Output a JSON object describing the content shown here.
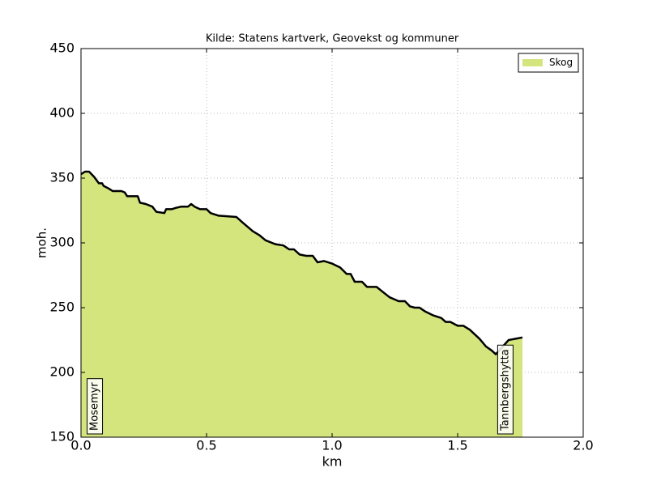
{
  "chart_data": {
    "type": "area",
    "title": "Kilde: Statens kartverk, Geovekst og kommuner",
    "x_label": "km",
    "y_label": "moh.",
    "xlim": [
      0,
      2
    ],
    "ylim": [
      150,
      450
    ],
    "xticks": [
      {
        "value": 0,
        "label": "0.0"
      },
      {
        "value": 0.5,
        "label": "0.5"
      },
      {
        "value": 1,
        "label": "1.0"
      },
      {
        "value": 1.5,
        "label": "1.5"
      },
      {
        "value": 2,
        "label": "2.0"
      }
    ],
    "yticks": [
      150,
      200,
      250,
      300,
      350,
      400,
      450
    ],
    "grid": true,
    "legend": "upper right",
    "line_color": "#000000",
    "x": [
      0,
      0.016,
      0.032,
      0.052,
      0.071,
      0.084,
      0.09,
      0.11,
      0.126,
      0.161,
      0.174,
      0.184,
      0.226,
      0.235,
      0.258,
      0.284,
      0.3,
      0.332,
      0.339,
      0.361,
      0.377,
      0.4,
      0.426,
      0.439,
      0.452,
      0.474,
      0.5,
      0.516,
      0.548,
      0.619,
      0.642,
      0.684,
      0.71,
      0.735,
      0.774,
      0.806,
      0.829,
      0.848,
      0.871,
      0.897,
      0.923,
      0.942,
      0.968,
      1.0,
      1.032,
      1.058,
      1.074,
      1.09,
      1.119,
      1.139,
      1.177,
      1.203,
      1.229,
      1.265,
      1.29,
      1.31,
      1.329,
      1.348,
      1.371,
      1.403,
      1.435,
      1.452,
      1.471,
      1.5,
      1.523,
      1.548,
      1.587,
      1.613,
      1.635,
      1.652,
      1.703,
      1.758
    ],
    "series": [
      {
        "name": "Skog",
        "color": "#d4e57e",
        "values": [
          353,
          355,
          355,
          351,
          346,
          346,
          344,
          342,
          340,
          340,
          339,
          336,
          336,
          331,
          330,
          328,
          324,
          323,
          326,
          326,
          327,
          328,
          328,
          330,
          328,
          326,
          326,
          323,
          321,
          320,
          316,
          309,
          306,
          302,
          299,
          298,
          295,
          295,
          291,
          290,
          290,
          285,
          286,
          284,
          281,
          276,
          276,
          270,
          270,
          266,
          266,
          262,
          258,
          255,
          255,
          251,
          250,
          250,
          247,
          244,
          242,
          239,
          239,
          236,
          236,
          233,
          226,
          220,
          217,
          214,
          225,
          227
        ]
      }
    ],
    "annotations": [
      {
        "text": "Mosemyr",
        "x": 0.055
      },
      {
        "text": "Tannbergshytta",
        "x": 1.69
      }
    ]
  }
}
